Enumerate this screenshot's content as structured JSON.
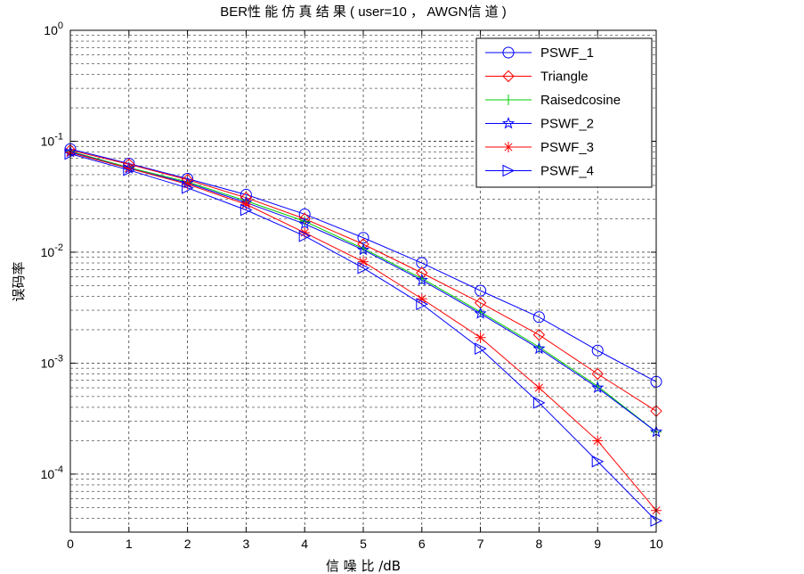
{
  "chart_data": {
    "type": "line",
    "title": "BER性 能 仿 真 结 果 ( user=10 ，  AWGN信 道  )",
    "xlabel": "信 噪 比 /dB",
    "ylabel": "误码率",
    "x": [
      0,
      1,
      2,
      3,
      4,
      5,
      6,
      7,
      8,
      9,
      10
    ],
    "xlim": [
      0,
      10
    ],
    "ylim": [
      3e-05,
      1
    ],
    "yscale": "log",
    "grid": true,
    "legend_position": "top-right",
    "x_ticks": [
      "0",
      "1",
      "2",
      "3",
      "4",
      "5",
      "6",
      "7",
      "8",
      "9",
      "10"
    ],
    "y_ticks": [
      {
        "value": 1,
        "base": "10",
        "exp": "0"
      },
      {
        "value": 0.1,
        "base": "10",
        "exp": "-1"
      },
      {
        "value": 0.01,
        "base": "10",
        "exp": "-2"
      },
      {
        "value": 0.001,
        "base": "10",
        "exp": "-3"
      },
      {
        "value": 0.0001,
        "base": "10",
        "exp": "-4"
      }
    ],
    "series": [
      {
        "name": "PSWF_1",
        "color": "#0000ff",
        "marker": "circle",
        "values": [
          0.085,
          0.063,
          0.046,
          0.033,
          0.022,
          0.0135,
          0.008,
          0.0045,
          0.0026,
          0.0013,
          0.00068
        ]
      },
      {
        "name": "Triangle",
        "color": "#ff0000",
        "marker": "diamond",
        "values": [
          0.083,
          0.062,
          0.045,
          0.031,
          0.02,
          0.0118,
          0.0065,
          0.0035,
          0.0018,
          0.0008,
          0.00037
        ]
      },
      {
        "name": "Raisedcosine",
        "color": "#00cc00",
        "marker": "plus",
        "values": [
          0.081,
          0.058,
          0.043,
          0.029,
          0.019,
          0.0108,
          0.0058,
          0.0029,
          0.0014,
          0.00062,
          0.00024
        ]
      },
      {
        "name": "PSWF_2",
        "color": "#0000ff",
        "marker": "star",
        "values": [
          0.08,
          0.057,
          0.042,
          0.028,
          0.018,
          0.0105,
          0.0056,
          0.0028,
          0.00135,
          0.0006,
          0.00024
        ]
      },
      {
        "name": "PSWF_3",
        "color": "#ff0000",
        "marker": "asterisk",
        "values": [
          0.079,
          0.057,
          0.041,
          0.027,
          0.015,
          0.0082,
          0.0038,
          0.0017,
          0.0006,
          0.0002,
          4.7e-05
        ]
      },
      {
        "name": "PSWF_4",
        "color": "#0000ff",
        "marker": "triangle-right",
        "values": [
          0.077,
          0.055,
          0.038,
          0.024,
          0.014,
          0.0072,
          0.0034,
          0.00135,
          0.00044,
          0.00013,
          3.8e-05
        ]
      }
    ]
  }
}
